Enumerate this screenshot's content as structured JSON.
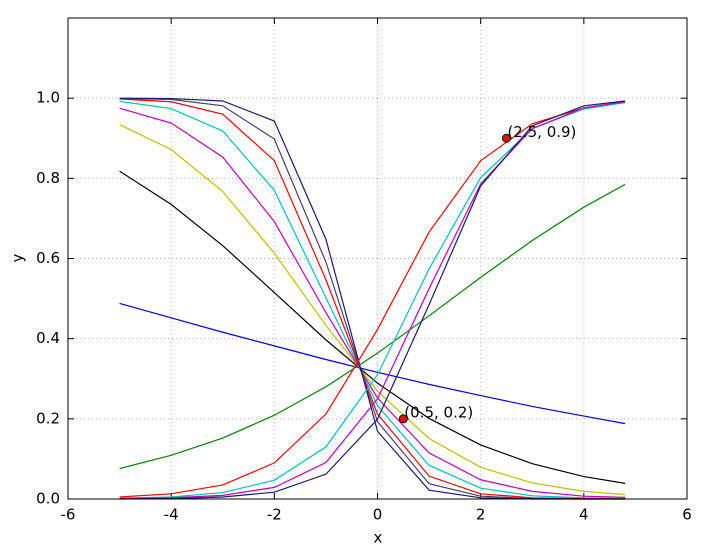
{
  "chart_data": {
    "type": "line",
    "x_label": "x",
    "y_label": "y",
    "x": [
      -5,
      -4,
      -3,
      -2,
      -1,
      0,
      1,
      2,
      3,
      4,
      4.8
    ],
    "series": [
      {
        "color": "#0000ff",
        "values": [
          0.488,
          0.452,
          0.416,
          0.382,
          0.348,
          0.316,
          0.286,
          0.258,
          0.231,
          0.207,
          0.188
        ]
      },
      {
        "color": "#000000",
        "values": [
          0.818,
          0.735,
          0.632,
          0.515,
          0.397,
          0.289,
          0.201,
          0.135,
          0.088,
          0.056,
          0.039
        ]
      },
      {
        "color": "#bfbf00",
        "values": [
          0.934,
          0.872,
          0.767,
          0.613,
          0.433,
          0.269,
          0.151,
          0.079,
          0.04,
          0.019,
          0.011
        ]
      },
      {
        "color": "#bf00bf",
        "values": [
          0.975,
          0.938,
          0.853,
          0.692,
          0.465,
          0.252,
          0.115,
          0.048,
          0.019,
          0.007,
          0.004
        ]
      },
      {
        "color": "#00bfbf",
        "values": [
          0.992,
          0.974,
          0.918,
          0.77,
          0.502,
          0.233,
          0.084,
          0.027,
          0.008,
          0.003,
          0.001
        ]
      },
      {
        "color": "#ff0000",
        "values": [
          0.998,
          0.991,
          0.96,
          0.844,
          0.547,
          0.212,
          0.057,
          0.013,
          0.003,
          0.001,
          0.0
        ]
      },
      {
        "color": "#4b3c6e",
        "values": [
          0.999,
          0.997,
          0.981,
          0.898,
          0.591,
          0.193,
          0.038,
          0.007,
          0.001,
          0.0,
          0.0
        ]
      },
      {
        "color": "#1a1a6e",
        "values": [
          1.0,
          0.999,
          0.993,
          0.943,
          0.648,
          0.169,
          0.022,
          0.003,
          0.0,
          0.0,
          0.0
        ]
      },
      {
        "color": "#008000",
        "values": [
          0.076,
          0.109,
          0.152,
          0.209,
          0.28,
          0.364,
          0.457,
          0.553,
          0.645,
          0.728,
          0.785
        ]
      },
      {
        "color": "#ff0000",
        "values": [
          0.005,
          0.013,
          0.035,
          0.09,
          0.212,
          0.423,
          0.666,
          0.844,
          0.936,
          0.976,
          0.989
        ]
      },
      {
        "color": "#00bfbf",
        "values": [
          0.002,
          0.005,
          0.016,
          0.047,
          0.13,
          0.31,
          0.574,
          0.802,
          0.924,
          0.973,
          0.989
        ]
      },
      {
        "color": "#bf00bf",
        "values": [
          0.001,
          0.003,
          0.009,
          0.029,
          0.091,
          0.25,
          0.525,
          0.786,
          0.924,
          0.976,
          0.991
        ]
      },
      {
        "color": "#1a1a6e",
        "values": [
          0.0,
          0.001,
          0.005,
          0.017,
          0.062,
          0.199,
          0.485,
          0.781,
          0.931,
          0.981,
          0.993
        ]
      }
    ],
    "points": {
      "x": [
        0.5,
        2.5
      ],
      "y": [
        0.2,
        0.9
      ],
      "color": "#ff0000",
      "labels": [
        "(0.5, 0.2)",
        "(2.5, 0.9)"
      ]
    },
    "xlim": [
      -6,
      6
    ],
    "xticks": [
      -6,
      -4,
      -2,
      0,
      2,
      4,
      6
    ],
    "ylim": [
      0,
      1.2
    ],
    "yticks": [
      {
        "value": 0,
        "label": "0.0"
      },
      0.2,
      0.4,
      0.6,
      0.8,
      {
        "value": 1,
        "label": "1.0"
      }
    ],
    "grid": true
  }
}
